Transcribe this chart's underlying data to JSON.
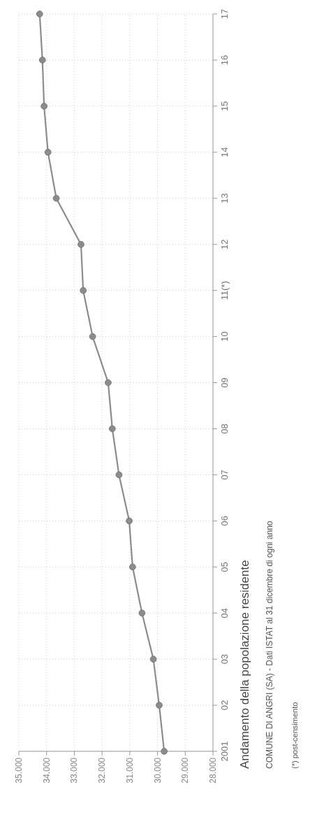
{
  "chart_data": {
    "type": "line",
    "orientation": "horizontal",
    "title": "Andamento della popolazione residente",
    "annotations": [
      "COMUNE DI ANGRI (SA) - Dati ISTAT al 31 dicembre di ogni anno",
      "(*) post-censimento"
    ],
    "categories": [
      "17",
      "16",
      "15",
      "14",
      "13",
      "12",
      "11(*)",
      "10",
      "09",
      "08",
      "07",
      "06",
      "05",
      "04",
      "03",
      "02",
      "2001"
    ],
    "series": [
      {
        "color": "#8c8c8c",
        "values": [
          34250,
          34150,
          34090,
          33950,
          33650,
          32760,
          32680,
          32340,
          31780,
          31630,
          31390,
          31020,
          30900,
          30560,
          30150,
          29940,
          29760
        ]
      }
    ],
    "xlim": [
      35000,
      28000
    ],
    "xticks": [
      {
        "value": 35000,
        "label": "35.000"
      },
      {
        "value": 34000,
        "label": "34.000"
      },
      {
        "value": 33000,
        "label": "33.000"
      },
      {
        "value": 32000,
        "label": "32.000"
      },
      {
        "value": 31000,
        "label": "31.000"
      },
      {
        "value": 30000,
        "label": "30.000"
      },
      {
        "value": 29000,
        "label": "29.000"
      },
      {
        "value": 28000,
        "label": "28.000"
      }
    ],
    "grid": true,
    "marker": "circle",
    "line_style": "solid"
  }
}
